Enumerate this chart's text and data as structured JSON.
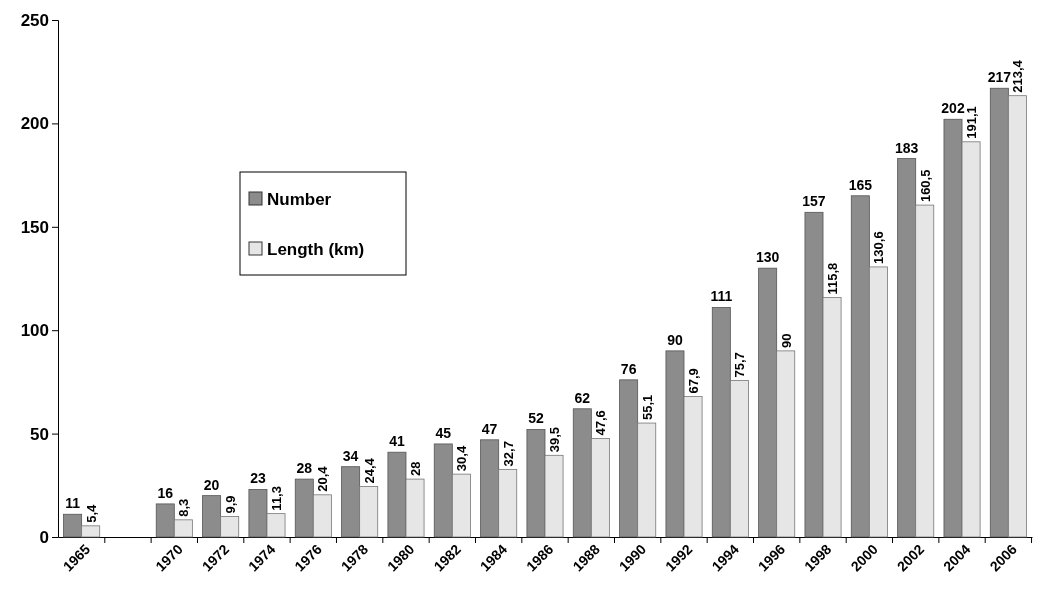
{
  "chart_data": {
    "type": "bar",
    "categories": [
      "1965",
      null,
      "1970",
      "1972",
      "1974",
      "1976",
      "1978",
      "1980",
      "1982",
      "1984",
      "1986",
      "1988",
      "1990",
      "1992",
      "1994",
      "1996",
      "1998",
      "2000",
      "2002",
      "2004",
      "2006"
    ],
    "series": [
      {
        "name": "Number",
        "color": "#8c8c8c",
        "values": [
          11,
          null,
          16,
          20,
          23,
          28,
          34,
          41,
          45,
          47,
          52,
          62,
          76,
          90,
          111,
          130,
          157,
          165,
          183,
          202,
          217
        ],
        "value_labels": [
          "11",
          null,
          "16",
          "20",
          "23",
          "28",
          "34",
          "41",
          "45",
          "47",
          "52",
          "62",
          "76",
          "90",
          "111",
          "130",
          "157",
          "165",
          "183",
          "202",
          "217"
        ]
      },
      {
        "name": "Length (km)",
        "color": "#e6e6e6",
        "values": [
          5.4,
          null,
          8.3,
          9.9,
          11.3,
          20.4,
          24.4,
          28,
          30.4,
          32.7,
          39.5,
          47.6,
          55.1,
          67.9,
          75.7,
          90,
          115.8,
          130.6,
          160.5,
          191.1,
          213.4
        ],
        "value_labels": [
          "5,4",
          null,
          "8,3",
          "9,9",
          "11,3",
          "20,4",
          "24,4",
          "28",
          "30,4",
          "32,7",
          "39,5",
          "47,6",
          "55,1",
          "67,9",
          "75,7",
          "90",
          "115,8",
          "130,6",
          "160,5",
          "191,1",
          "213,4"
        ]
      }
    ],
    "ylim": [
      0,
      250
    ],
    "yticks": [
      0,
      50,
      100,
      150,
      200,
      250
    ],
    "grid": false,
    "legend": "top left"
  }
}
